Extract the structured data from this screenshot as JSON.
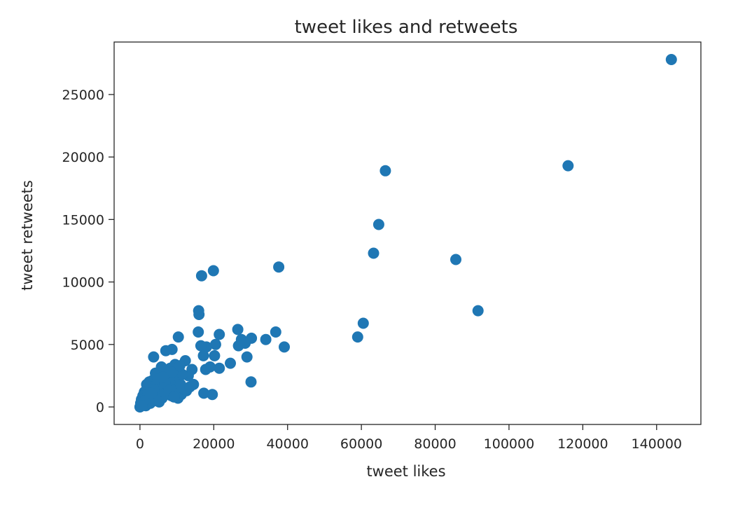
{
  "chart_data": {
    "type": "scatter",
    "title": "tweet likes and retweets",
    "xlabel": "tweet likes",
    "ylabel": "tweet retweets",
    "xlim": [
      -7000,
      152000
    ],
    "ylim": [
      -1400,
      29200
    ],
    "xticks": [
      0,
      20000,
      40000,
      60000,
      80000,
      100000,
      120000,
      140000
    ],
    "yticks": [
      0,
      5000,
      10000,
      15000,
      20000,
      25000
    ],
    "grid": false,
    "color": "#1f77b4",
    "series": [
      {
        "points": [
          [
            144000,
            27800
          ],
          [
            116000,
            19300
          ],
          [
            66500,
            18900
          ],
          [
            64700,
            14600
          ],
          [
            63300,
            12300
          ],
          [
            85600,
            11800
          ],
          [
            91600,
            7700
          ],
          [
            60500,
            6700
          ],
          [
            59000,
            5600
          ],
          [
            37600,
            11200
          ],
          [
            19900,
            10900
          ],
          [
            16700,
            10500
          ],
          [
            15900,
            7700
          ],
          [
            16000,
            7400
          ],
          [
            36800,
            6000
          ],
          [
            39100,
            4800
          ],
          [
            34100,
            5400
          ],
          [
            30200,
            5500
          ],
          [
            29000,
            4000
          ],
          [
            30100,
            2000
          ],
          [
            26500,
            6200
          ],
          [
            27500,
            5400
          ],
          [
            28500,
            5100
          ],
          [
            26700,
            4900
          ],
          [
            24500,
            3500
          ],
          [
            21500,
            5800
          ],
          [
            20500,
            5000
          ],
          [
            20200,
            4100
          ],
          [
            21500,
            3100
          ],
          [
            19000,
            3200
          ],
          [
            18000,
            4800
          ],
          [
            16500,
            4900
          ],
          [
            17200,
            4100
          ],
          [
            15800,
            6000
          ],
          [
            17300,
            1100
          ],
          [
            19600,
            1000
          ],
          [
            17800,
            3000
          ],
          [
            10400,
            5600
          ],
          [
            8700,
            4600
          ],
          [
            7000,
            4500
          ],
          [
            3700,
            4000
          ],
          [
            12300,
            3700
          ],
          [
            13100,
            2500
          ],
          [
            14100,
            3000
          ],
          [
            12600,
            1300
          ],
          [
            11200,
            1000
          ],
          [
            10300,
            700
          ],
          [
            9500,
            3400
          ],
          [
            8200,
            3100
          ],
          [
            7100,
            2800
          ],
          [
            6200,
            3000
          ],
          [
            5100,
            2500
          ],
          [
            4200,
            2700
          ],
          [
            3300,
            2100
          ],
          [
            2500,
            2000
          ],
          [
            1800,
            1800
          ],
          [
            1200,
            1200
          ],
          [
            800,
            900
          ],
          [
            400,
            600
          ],
          [
            200,
            300
          ],
          [
            0,
            0
          ],
          [
            300,
            100
          ],
          [
            600,
            400
          ],
          [
            1000,
            200
          ],
          [
            1500,
            600
          ],
          [
            2000,
            900
          ],
          [
            2500,
            1300
          ],
          [
            3000,
            1600
          ],
          [
            3500,
            800
          ],
          [
            4000,
            1000
          ],
          [
            4500,
            1800
          ],
          [
            5000,
            1400
          ],
          [
            5500,
            2000
          ],
          [
            6000,
            700
          ],
          [
            6500,
            1500
          ],
          [
            7000,
            1100
          ],
          [
            7500,
            2300
          ],
          [
            8000,
            1700
          ],
          [
            8500,
            900
          ],
          [
            9000,
            2000
          ],
          [
            9500,
            1400
          ],
          [
            10000,
            2500
          ],
          [
            11000,
            1800
          ],
          [
            11500,
            2600
          ],
          [
            12000,
            1500
          ],
          [
            13500,
            1600
          ],
          [
            14500,
            1800
          ],
          [
            5200,
            400
          ],
          [
            2800,
            300
          ],
          [
            1600,
            100
          ],
          [
            4800,
            2200
          ],
          [
            6800,
            1900
          ],
          [
            3800,
            1400
          ],
          [
            2200,
            1000
          ],
          [
            7800,
            1300
          ],
          [
            5800,
            3200
          ],
          [
            8800,
            2800
          ],
          [
            10800,
            3300
          ],
          [
            6300,
            2400
          ],
          [
            1300,
            500
          ],
          [
            500,
            100
          ],
          [
            2600,
            700
          ],
          [
            4400,
            500
          ],
          [
            3100,
            1100
          ],
          [
            9200,
            800
          ]
        ]
      }
    ]
  }
}
